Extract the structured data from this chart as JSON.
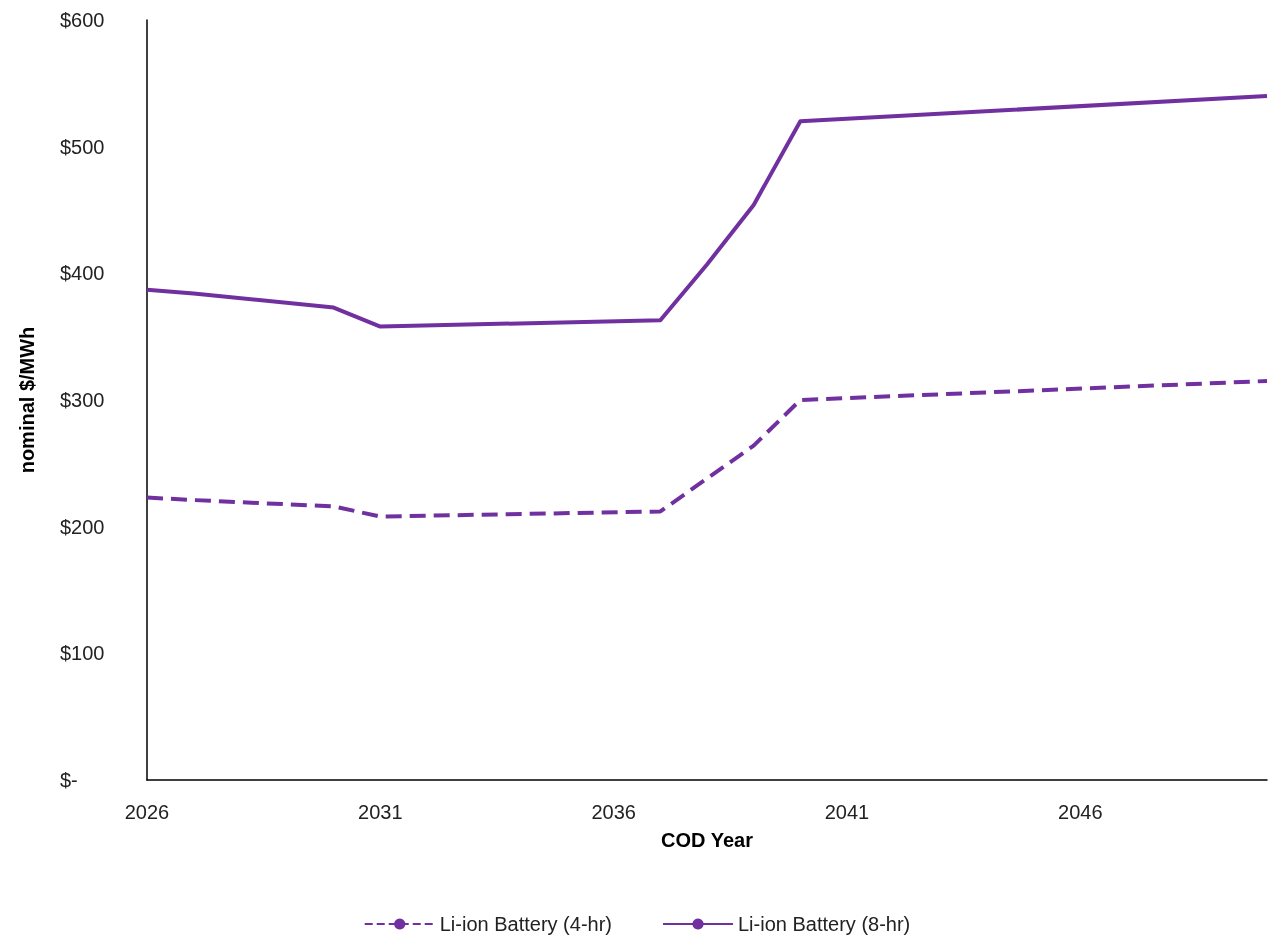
{
  "chart_data": {
    "type": "line",
    "xlabel": "COD Year",
    "ylabel": "nominal $/MWh",
    "xlim": [
      2026,
      2050
    ],
    "xticks": [
      2026,
      2031,
      2036,
      2041,
      2046
    ],
    "ylim": [
      0,
      600
    ],
    "yticks": [
      {
        "value": 0,
        "label": "$-"
      },
      {
        "value": 100,
        "label": "$100"
      },
      {
        "value": 200,
        "label": "$200"
      },
      {
        "value": 300,
        "label": "$300"
      },
      {
        "value": 400,
        "label": "$400"
      },
      {
        "value": 500,
        "label": "$500"
      },
      {
        "value": 600,
        "label": "$600"
      }
    ],
    "series": [
      {
        "name": "Li-ion Battery (4-hr)",
        "color": "#7030a0",
        "line_style": "dashed",
        "x": [
          2026,
          2027,
          2030,
          2031,
          2037,
          2038,
          2039,
          2040,
          2050
        ],
        "values": [
          223,
          221,
          216,
          208,
          212,
          238,
          264,
          300,
          315
        ]
      },
      {
        "name": "Li-ion Battery (8-hr)",
        "color": "#7030a0",
        "line_style": "solid",
        "x": [
          2026,
          2027,
          2030,
          2031,
          2037,
          2038,
          2039,
          2040,
          2050
        ],
        "values": [
          387,
          384,
          373,
          358,
          363,
          407,
          454,
          520,
          540
        ]
      }
    ],
    "grid": false,
    "legend": "bottom",
    "marker": "none"
  }
}
